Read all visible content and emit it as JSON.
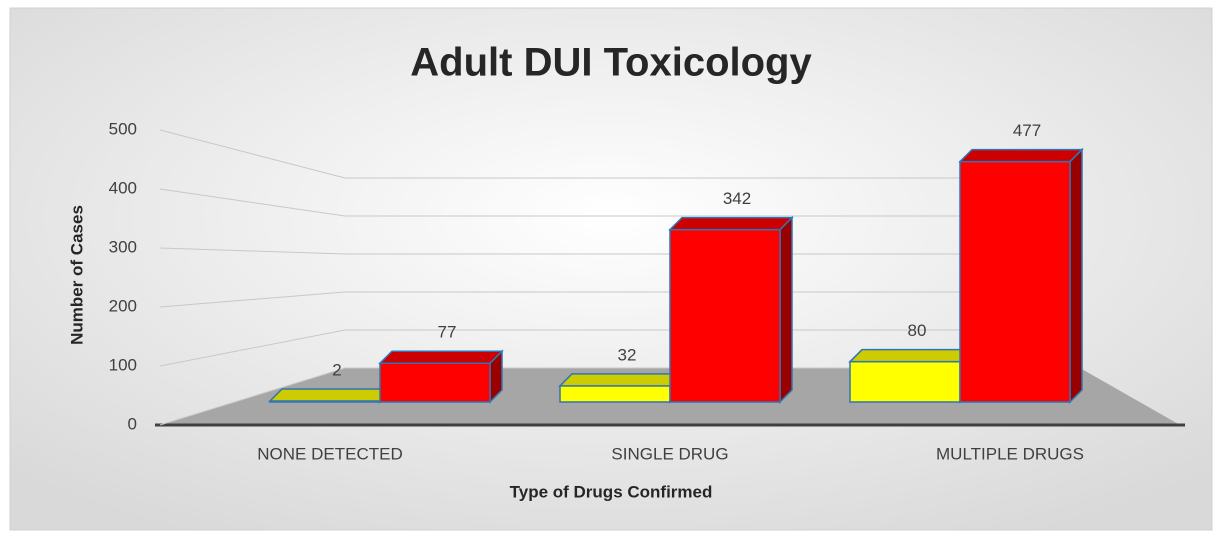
{
  "chart_data": {
    "type": "bar3d",
    "title": "Adult DUI Toxicology",
    "x_label": "Type of Drugs Confirmed",
    "y_label": "Number of Cases",
    "categories": [
      "NONE DETECTED",
      "SINGLE DRUG",
      "MULTIPLE DRUGS"
    ],
    "series": [
      {
        "color": "#ffff00",
        "values": [
          2,
          32,
          80
        ]
      },
      {
        "color": "#ff0000",
        "values": [
          77,
          342,
          477
        ]
      }
    ],
    "ylim": [
      0,
      500
    ],
    "yticks": [
      0,
      100,
      200,
      300,
      400,
      500
    ],
    "grid": true,
    "data_labels": true
  }
}
